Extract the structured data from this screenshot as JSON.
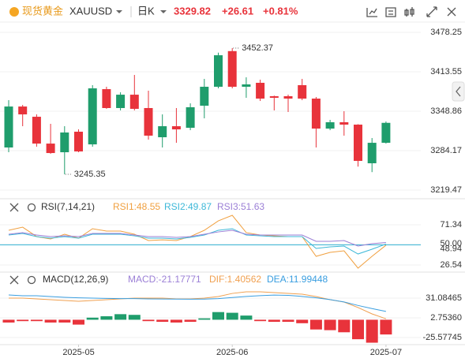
{
  "header": {
    "name": "现货黄金",
    "symbol": "XAUUSD",
    "period": "日K",
    "price": "3329.82",
    "change": "+26.61",
    "change_pct": "+0.81%"
  },
  "chart_data": [
    {
      "type": "candlestick",
      "categories": [
        null,
        null,
        null,
        null,
        null,
        "2025-05",
        null,
        null,
        null,
        null,
        null,
        null,
        null,
        null,
        null,
        null,
        "2025-06",
        null,
        null,
        null,
        null,
        null,
        null,
        null,
        null,
        null,
        null,
        "2025-07"
      ],
      "open": [
        3289.4,
        3356.6,
        3339.8,
        3295.8,
        3281.6,
        3315.3,
        3294.5,
        3385.1,
        3354.1,
        3376.0,
        3354.1,
        3306.2,
        3324.3,
        3321.7,
        3357.9,
        3389.0,
        3447.5,
        3389.0,
        3395.5,
        3373.5,
        3373.5,
        3391.6,
        3369.6,
        3320.4,
        3330.8,
        3326.9,
        3263.5,
        3297.1
      ],
      "high": [
        3367.0,
        3359.2,
        3343.7,
        3328.2,
        3324.3,
        3319.1,
        3391.6,
        3389.0,
        3379.9,
        3408.4,
        3382.5,
        3343.7,
        3354.1,
        3361.8,
        3401.9,
        3445.0,
        3452.37,
        3404.5,
        3400.6,
        3374.5,
        3376.0,
        3401.9,
        3372.2,
        3334.7,
        3348.9,
        3327.5,
        3304.9,
        3332.0
      ],
      "low": [
        3281.6,
        3324.3,
        3290.7,
        3279.0,
        3245.35,
        3281.6,
        3290.7,
        3352.8,
        3350.2,
        3350.2,
        3302.3,
        3289.4,
        3297.1,
        3317.8,
        3337.2,
        3386.4,
        3386.4,
        3370.9,
        3365.7,
        3350.2,
        3347.6,
        3367.0,
        3289.4,
        3317.8,
        3308.8,
        3258.0,
        3249.0,
        3295.8
      ],
      "close": [
        3356.6,
        3343.7,
        3295.8,
        3280.3,
        3314.0,
        3282.9,
        3386.4,
        3354.1,
        3376.0,
        3352.8,
        3308.8,
        3324.3,
        3319.1,
        3355.4,
        3389.0,
        3440.7,
        3389.0,
        3392.9,
        3369.6,
        3370.9,
        3369.6,
        3369.6,
        3320.4,
        3330.8,
        3326.9,
        3267.4,
        3297.1,
        3329.82
      ],
      "up_color": "#1f9d6c",
      "down_color": "#e8333b",
      "ylim": [
        3207.9,
        3495.1
      ],
      "yticks": [
        3219.47,
        3284.17,
        3348.86,
        3413.55,
        3478.25
      ],
      "annotations": [
        {
          "value": 3452.37,
          "at": 16
        },
        {
          "value": 3245.35,
          "at": 4
        }
      ]
    },
    {
      "type": "line",
      "title": "RSI(7,14,21)",
      "series": [
        {
          "name": "RSI1:48.55",
          "color": "#f0a040",
          "values": [
            65.2,
            68.7,
            58.2,
            55.5,
            60.8,
            56.4,
            67.0,
            64.3,
            64.3,
            60.8,
            53.8,
            54.6,
            53.8,
            58.2,
            65.2,
            75.7,
            81.9,
            62.6,
            59.9,
            59.0,
            58.2,
            58.2,
            36.2,
            40.6,
            42.3,
            23.0,
            36.2,
            48.55
          ]
        },
        {
          "name": "RSI2:49.87",
          "color": "#3db8d8",
          "values": [
            59.9,
            61.7,
            58.2,
            56.4,
            58.2,
            56.4,
            60.8,
            60.8,
            60.8,
            59.0,
            56.4,
            56.4,
            55.5,
            57.3,
            59.9,
            65.2,
            67.0,
            59.9,
            59.0,
            58.2,
            58.2,
            58.2,
            45.0,
            46.7,
            47.6,
            38.8,
            44.1,
            49.87
          ]
        },
        {
          "name": "RSI3:51.63",
          "color": "#9b7fd6",
          "values": [
            60.8,
            62.6,
            59.9,
            58.2,
            59.0,
            58.2,
            61.7,
            61.7,
            61.7,
            59.9,
            58.2,
            58.2,
            57.3,
            58.2,
            60.8,
            63.4,
            65.2,
            60.8,
            59.9,
            59.9,
            59.9,
            59.9,
            52.9,
            52.9,
            53.8,
            47.6,
            50.3,
            51.63
          ]
        }
      ],
      "ylim": [
        18.6,
        82.8
      ],
      "yticks": [
        26.54,
        {
          "value": 50,
          "label": "50.00"
        },
        71.34
      ],
      "markers": [
        {
          "value": 48.94,
          "color": "#3db8d8"
        }
      ]
    },
    {
      "type": "combo",
      "title": "MACD(12,26,9)",
      "series": [
        {
          "name": "MACD:-21.17771",
          "kind": "bar",
          "color": "#9b7fd6",
          "pos_color": "#1f9d6c",
          "neg_color": "#e8333b",
          "values": [
            -4,
            -2,
            -2,
            -4,
            -4,
            -7,
            3,
            5,
            8,
            7,
            -2,
            -3,
            -4,
            -3,
            2,
            11,
            10,
            6,
            -2,
            -3,
            -3,
            -5,
            -14,
            -15,
            -18,
            -28,
            -33,
            -21.17771
          ]
        },
        {
          "name": "DIF:1.40562",
          "kind": "line",
          "color": "#f0a050",
          "values": [
            31.0,
            31.0,
            29.9,
            28.8,
            27.6,
            26.5,
            27.6,
            28.8,
            29.9,
            31.0,
            31.0,
            31.0,
            29.9,
            29.9,
            31.0,
            33.3,
            37.8,
            40.1,
            40.1,
            39.0,
            37.8,
            36.7,
            33.3,
            28.8,
            25.4,
            17.5,
            8.4,
            1.40562
          ]
        },
        {
          "name": "DEA:11.99448",
          "kind": "line",
          "color": "#3a9ee0",
          "values": [
            35.6,
            34.4,
            34.4,
            33.3,
            32.2,
            31.5,
            31.0,
            30.6,
            30.4,
            30.3,
            30.0,
            29.8,
            29.6,
            29.5,
            29.7,
            30.4,
            31.9,
            33.5,
            34.6,
            35.5,
            35.0,
            33.5,
            31.5,
            29.0,
            25.5,
            20.5,
            16.0,
            11.99448
          ]
        }
      ],
      "ylim": [
        -39.2,
        45.8
      ],
      "yticks": [
        -25.57745,
        {
          "value": 2.7536,
          "label": "2.75360"
        },
        31.08465
      ]
    }
  ]
}
